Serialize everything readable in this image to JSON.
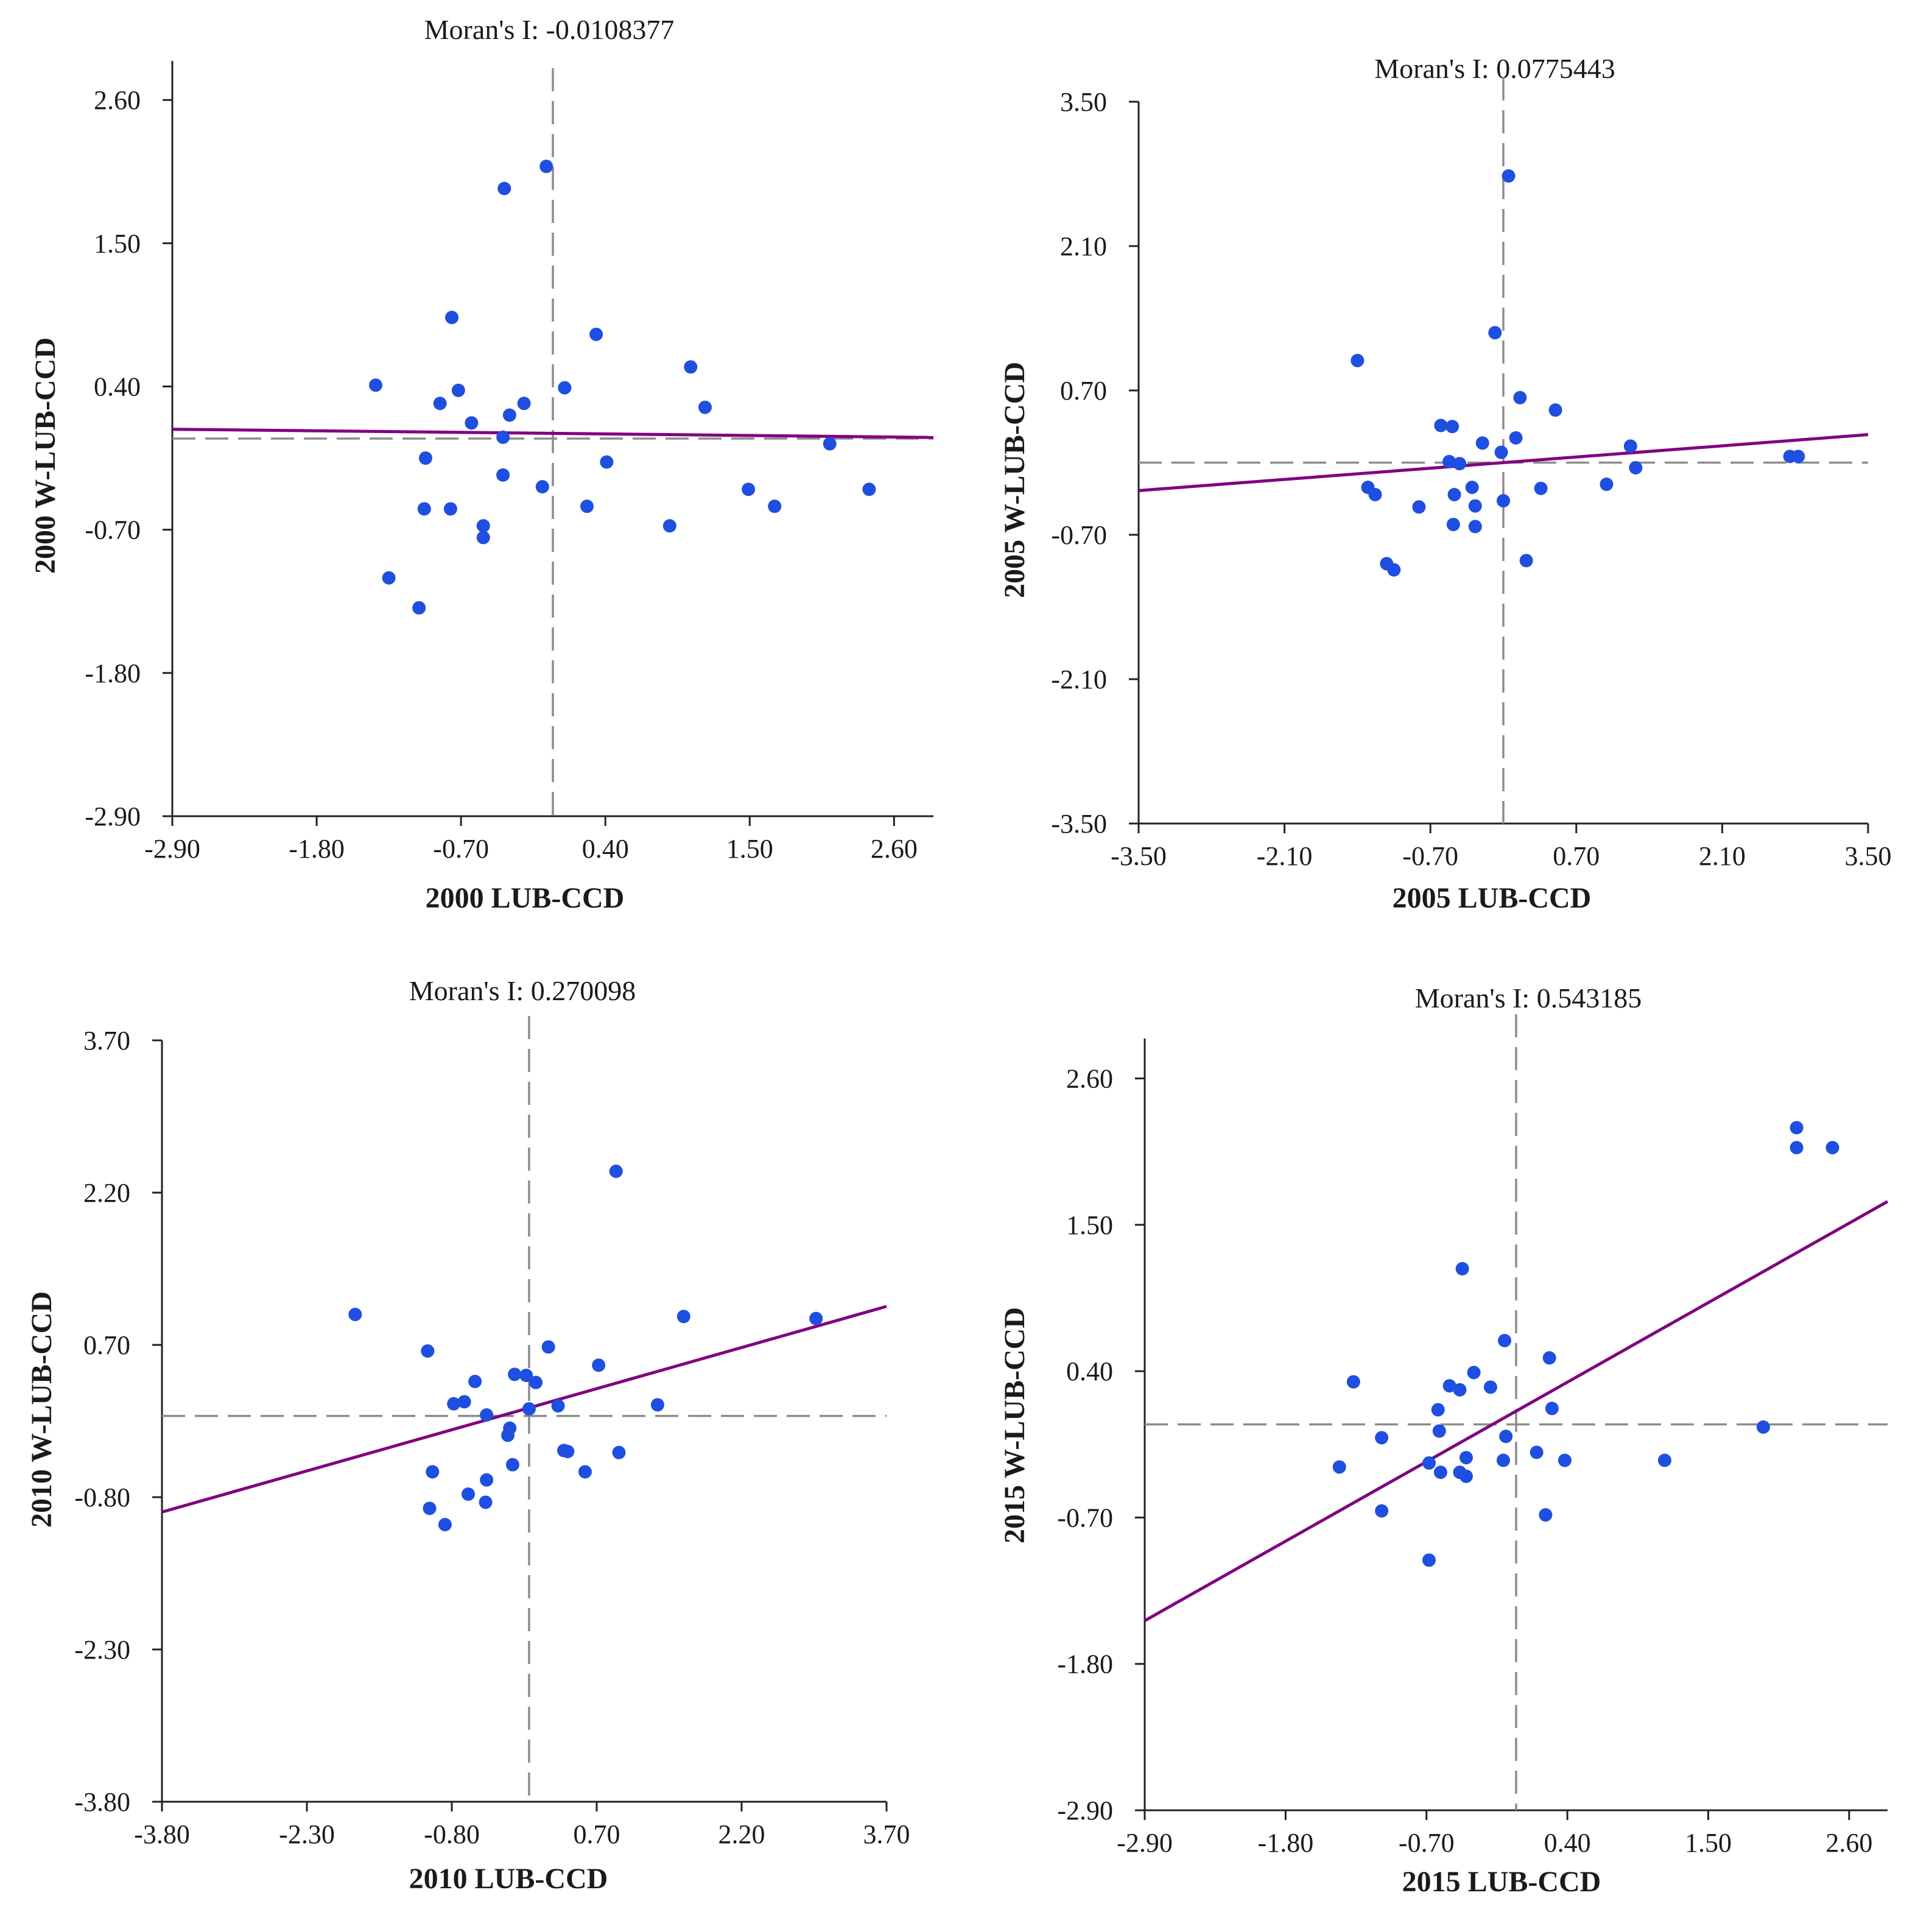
{
  "colors": {
    "point": "#1f4fe0",
    "regression": "#800080",
    "guide": "#8c8c8c",
    "axis": "#222222"
  },
  "chart_data": [
    {
      "type": "scatter",
      "title": "Moran's I: -0.0108377",
      "xlabel": "2000 LUB-CCD",
      "ylabel": "2000 W-LUB-CCD",
      "xlim": [
        -2.9,
        2.9
      ],
      "ylim": [
        -2.9,
        2.9
      ],
      "xticks": [
        "-2.90",
        "-1.80",
        "-0.70",
        "0.40",
        "1.50",
        "2.60"
      ],
      "yticks": [
        "-2.90",
        "-1.80",
        "-0.70",
        "0.40",
        "1.50",
        "2.60"
      ],
      "regression": {
        "slope": -0.0108377,
        "intercept": 0.04
      },
      "mean_lines": {
        "x": 0.0,
        "y": 0.0
      },
      "points": [
        [
          -0.37,
          1.92
        ],
        [
          -0.05,
          2.09
        ],
        [
          -0.77,
          0.93
        ],
        [
          0.33,
          0.8
        ],
        [
          1.05,
          0.55
        ],
        [
          -1.35,
          0.41
        ],
        [
          -0.72,
          0.37
        ],
        [
          0.09,
          0.39
        ],
        [
          -0.86,
          0.27
        ],
        [
          -0.22,
          0.27
        ],
        [
          -0.33,
          0.18
        ],
        [
          -0.62,
          0.12
        ],
        [
          1.16,
          0.24
        ],
        [
          -0.38,
          0.01
        ],
        [
          2.11,
          -0.04
        ],
        [
          -0.97,
          -0.15
        ],
        [
          0.41,
          -0.18
        ],
        [
          -0.38,
          -0.28
        ],
        [
          -0.08,
          -0.37
        ],
        [
          1.49,
          -0.39
        ],
        [
          2.41,
          -0.39
        ],
        [
          -0.98,
          -0.54
        ],
        [
          -0.78,
          -0.54
        ],
        [
          0.26,
          -0.52
        ],
        [
          1.69,
          -0.52
        ],
        [
          -0.53,
          -0.67
        ],
        [
          0.89,
          -0.67
        ],
        [
          -0.53,
          -0.76
        ],
        [
          -1.25,
          -1.07
        ],
        [
          -1.02,
          -1.3
        ]
      ]
    },
    {
      "type": "scatter",
      "title": "Moran's I: 0.0775443",
      "xlabel": "2005 LUB-CCD",
      "ylabel": "2005 W-LUB-CCD",
      "xlim": [
        -3.5,
        3.5
      ],
      "ylim": [
        -3.5,
        3.5
      ],
      "xticks": [
        "-3.50",
        "-2.10",
        "-0.70",
        "0.70",
        "2.10",
        "3.50"
      ],
      "yticks": [
        "-3.50",
        "-2.10",
        "-0.70",
        "0.70",
        "2.10",
        "3.50"
      ],
      "regression": {
        "slope": 0.0775443,
        "intercept": 0.0
      },
      "mean_lines": {
        "x": 0.0,
        "y": 0.0
      },
      "points": [
        [
          0.05,
          2.78
        ],
        [
          -0.08,
          1.26
        ],
        [
          -1.4,
          0.99
        ],
        [
          0.16,
          0.63
        ],
        [
          0.5,
          0.51
        ],
        [
          -0.6,
          0.36
        ],
        [
          -0.49,
          0.35
        ],
        [
          0.12,
          0.24
        ],
        [
          -0.2,
          0.19
        ],
        [
          -0.02,
          0.1
        ],
        [
          -0.52,
          0.01
        ],
        [
          -0.42,
          -0.01
        ],
        [
          1.22,
          0.16
        ],
        [
          1.27,
          -0.05
        ],
        [
          2.75,
          0.06
        ],
        [
          2.83,
          0.06
        ],
        [
          -1.3,
          -0.24
        ],
        [
          -1.23,
          -0.31
        ],
        [
          -0.3,
          -0.24
        ],
        [
          0.36,
          -0.25
        ],
        [
          -0.47,
          -0.31
        ],
        [
          -0.81,
          -0.43
        ],
        [
          -0.27,
          -0.42
        ],
        [
          0.0,
          -0.37
        ],
        [
          0.99,
          -0.21
        ],
        [
          -0.48,
          -0.6
        ],
        [
          -0.27,
          -0.62
        ],
        [
          0.22,
          -0.95
        ],
        [
          -1.12,
          -0.98
        ],
        [
          -1.05,
          -1.04
        ]
      ]
    },
    {
      "type": "scatter",
      "title": "Moran's I: 0.270098",
      "xlabel": "2010 LUB-CCD",
      "ylabel": "2010 W-LUB-CCD",
      "xlim": [
        -3.8,
        3.7
      ],
      "ylim": [
        -3.8,
        3.7
      ],
      "xticks": [
        "-3.80",
        "-2.30",
        "-0.80",
        "0.70",
        "2.20",
        "3.70"
      ],
      "yticks": [
        "-3.80",
        "-2.30",
        "-0.80",
        "0.70",
        "2.20",
        "3.70"
      ],
      "regression": {
        "slope": 0.270098,
        "intercept": 0.08
      },
      "mean_lines": {
        "x": 0.0,
        "y": 0.0
      },
      "points": [
        [
          0.9,
          2.41
        ],
        [
          -1.8,
          1.0
        ],
        [
          1.6,
          0.98
        ],
        [
          2.97,
          0.96
        ],
        [
          -1.05,
          0.64
        ],
        [
          0.2,
          0.68
        ],
        [
          0.72,
          0.5
        ],
        [
          -0.56,
          0.34
        ],
        [
          -0.15,
          0.41
        ],
        [
          -0.03,
          0.4
        ],
        [
          0.07,
          0.33
        ],
        [
          -0.78,
          0.12
        ],
        [
          -0.67,
          0.14
        ],
        [
          0.3,
          0.1
        ],
        [
          1.33,
          0.11
        ],
        [
          -0.44,
          0.01
        ],
        [
          0.0,
          0.07
        ],
        [
          -0.22,
          -0.19
        ],
        [
          -0.2,
          -0.12
        ],
        [
          0.36,
          -0.34
        ],
        [
          0.4,
          -0.35
        ],
        [
          0.93,
          -0.36
        ],
        [
          -1.0,
          -0.55
        ],
        [
          -0.44,
          -0.63
        ],
        [
          0.58,
          -0.55
        ],
        [
          -0.17,
          -0.48
        ],
        [
          -0.63,
          -0.77
        ],
        [
          -0.45,
          -0.85
        ],
        [
          -1.03,
          -0.91
        ],
        [
          -0.87,
          -1.07
        ]
      ]
    },
    {
      "type": "scatter",
      "title": "Moran's I: 0.543185",
      "xlabel": "2015 LUB-CCD",
      "ylabel": "2015 W-LUB-CCD",
      "xlim": [
        -2.9,
        2.9
      ],
      "ylim": [
        -2.9,
        2.9
      ],
      "xticks": [
        "-2.90",
        "-1.80",
        "-0.70",
        "0.40",
        "1.50",
        "2.60"
      ],
      "yticks": [
        "-2.90",
        "-1.80",
        "-0.70",
        "0.40",
        "1.50",
        "2.60"
      ],
      "regression": {
        "slope": 0.543185,
        "intercept": 0.1
      },
      "mean_lines": {
        "x": 0.0,
        "y": 0.0
      },
      "points": [
        [
          2.19,
          2.23
        ],
        [
          2.19,
          2.08
        ],
        [
          2.47,
          2.08
        ],
        [
          -0.42,
          1.17
        ],
        [
          -0.09,
          0.63
        ],
        [
          0.26,
          0.5
        ],
        [
          -0.33,
          0.39
        ],
        [
          -1.27,
          0.32
        ],
        [
          -0.52,
          0.29
        ],
        [
          -0.2,
          0.28
        ],
        [
          -0.44,
          0.26
        ],
        [
          0.28,
          0.12
        ],
        [
          -0.61,
          0.11
        ],
        [
          -1.05,
          -0.1
        ],
        [
          -0.6,
          -0.05
        ],
        [
          1.93,
          -0.02
        ],
        [
          -0.08,
          -0.09
        ],
        [
          0.16,
          -0.21
        ],
        [
          -0.39,
          -0.25
        ],
        [
          -0.68,
          -0.29
        ],
        [
          -0.1,
          -0.27
        ],
        [
          0.38,
          -0.27
        ],
        [
          1.16,
          -0.27
        ],
        [
          -1.38,
          -0.32
        ],
        [
          -0.59,
          -0.36
        ],
        [
          -0.44,
          -0.36
        ],
        [
          -0.39,
          -0.39
        ],
        [
          -1.05,
          -0.65
        ],
        [
          0.23,
          -0.68
        ],
        [
          -0.68,
          -1.02
        ]
      ]
    }
  ]
}
